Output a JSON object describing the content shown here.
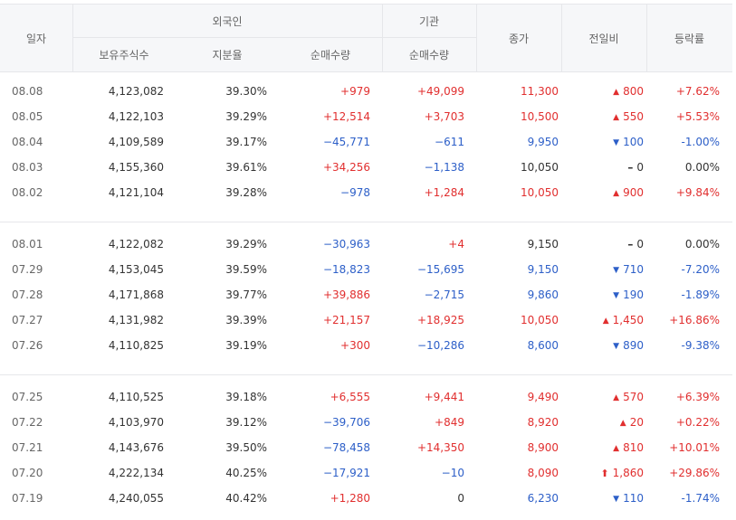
{
  "header": {
    "date": "일자",
    "foreign": "외국인",
    "institution": "기관",
    "holdings": "보유주식수",
    "ratio": "지분율",
    "foreign_net": "순매수량",
    "inst_net": "순매수량",
    "close": "종가",
    "change": "전일비",
    "rate": "등락률"
  },
  "colors": {
    "up": "#e12f2f",
    "down": "#2d5fc8"
  },
  "groups": [
    [
      {
        "date": "08.08",
        "hold": "4,123,082",
        "ratio": "39.30%",
        "fnet": "+979",
        "fnet_dir": "up",
        "inet": "+49,099",
        "inet_dir": "up",
        "close": "11,300",
        "close_dir": "up",
        "chg": "800",
        "chg_dir": "up",
        "chg_icon": "triangle-up-icon",
        "rate": "+7.62%",
        "rate_dir": "up"
      },
      {
        "date": "08.05",
        "hold": "4,122,103",
        "ratio": "39.29%",
        "fnet": "+12,514",
        "fnet_dir": "up",
        "inet": "+3,703",
        "inet_dir": "up",
        "close": "10,500",
        "close_dir": "up",
        "chg": "550",
        "chg_dir": "up",
        "chg_icon": "triangle-up-icon",
        "rate": "+5.53%",
        "rate_dir": "up"
      },
      {
        "date": "08.04",
        "hold": "4,109,589",
        "ratio": "39.17%",
        "fnet": "−45,771",
        "fnet_dir": "down",
        "inet": "−611",
        "inet_dir": "down",
        "close": "9,950",
        "close_dir": "down",
        "chg": "100",
        "chg_dir": "down",
        "chg_icon": "triangle-down-icon",
        "rate": "-1.00%",
        "rate_dir": "down"
      },
      {
        "date": "08.03",
        "hold": "4,155,360",
        "ratio": "39.61%",
        "fnet": "+34,256",
        "fnet_dir": "up",
        "inet": "−1,138",
        "inet_dir": "down",
        "close": "10,050",
        "close_dir": "flat",
        "chg": "0",
        "chg_dir": "flat",
        "chg_icon": "flat-dash-icon",
        "rate": "0.00%",
        "rate_dir": "flat"
      },
      {
        "date": "08.02",
        "hold": "4,121,104",
        "ratio": "39.28%",
        "fnet": "−978",
        "fnet_dir": "down",
        "inet": "+1,284",
        "inet_dir": "up",
        "close": "10,050",
        "close_dir": "up",
        "chg": "900",
        "chg_dir": "up",
        "chg_icon": "triangle-up-icon",
        "rate": "+9.84%",
        "rate_dir": "up"
      }
    ],
    [
      {
        "date": "08.01",
        "hold": "4,122,082",
        "ratio": "39.29%",
        "fnet": "−30,963",
        "fnet_dir": "down",
        "inet": "+4",
        "inet_dir": "up",
        "close": "9,150",
        "close_dir": "flat",
        "chg": "0",
        "chg_dir": "flat",
        "chg_icon": "flat-dash-icon",
        "rate": "0.00%",
        "rate_dir": "flat"
      },
      {
        "date": "07.29",
        "hold": "4,153,045",
        "ratio": "39.59%",
        "fnet": "−18,823",
        "fnet_dir": "down",
        "inet": "−15,695",
        "inet_dir": "down",
        "close": "9,150",
        "close_dir": "down",
        "chg": "710",
        "chg_dir": "down",
        "chg_icon": "triangle-down-icon",
        "rate": "-7.20%",
        "rate_dir": "down"
      },
      {
        "date": "07.28",
        "hold": "4,171,868",
        "ratio": "39.77%",
        "fnet": "+39,886",
        "fnet_dir": "up",
        "inet": "−2,715",
        "inet_dir": "down",
        "close": "9,860",
        "close_dir": "down",
        "chg": "190",
        "chg_dir": "down",
        "chg_icon": "triangle-down-icon",
        "rate": "-1.89%",
        "rate_dir": "down"
      },
      {
        "date": "07.27",
        "hold": "4,131,982",
        "ratio": "39.39%",
        "fnet": "+21,157",
        "fnet_dir": "up",
        "inet": "+18,925",
        "inet_dir": "up",
        "close": "10,050",
        "close_dir": "up",
        "chg": "1,450",
        "chg_dir": "up",
        "chg_icon": "triangle-up-icon",
        "rate": "+16.86%",
        "rate_dir": "up"
      },
      {
        "date": "07.26",
        "hold": "4,110,825",
        "ratio": "39.19%",
        "fnet": "+300",
        "fnet_dir": "up",
        "inet": "−10,286",
        "inet_dir": "down",
        "close": "8,600",
        "close_dir": "down",
        "chg": "890",
        "chg_dir": "down",
        "chg_icon": "triangle-down-icon",
        "rate": "-9.38%",
        "rate_dir": "down"
      }
    ],
    [
      {
        "date": "07.25",
        "hold": "4,110,525",
        "ratio": "39.18%",
        "fnet": "+6,555",
        "fnet_dir": "up",
        "inet": "+9,441",
        "inet_dir": "up",
        "close": "9,490",
        "close_dir": "up",
        "chg": "570",
        "chg_dir": "up",
        "chg_icon": "triangle-up-icon",
        "rate": "+6.39%",
        "rate_dir": "up"
      },
      {
        "date": "07.22",
        "hold": "4,103,970",
        "ratio": "39.12%",
        "fnet": "−39,706",
        "fnet_dir": "down",
        "inet": "+849",
        "inet_dir": "up",
        "close": "8,920",
        "close_dir": "up",
        "chg": "20",
        "chg_dir": "up",
        "chg_icon": "triangle-up-icon",
        "rate": "+0.22%",
        "rate_dir": "up"
      },
      {
        "date": "07.21",
        "hold": "4,143,676",
        "ratio": "39.50%",
        "fnet": "−78,458",
        "fnet_dir": "down",
        "inet": "+14,350",
        "inet_dir": "up",
        "close": "8,900",
        "close_dir": "up",
        "chg": "810",
        "chg_dir": "up",
        "chg_icon": "triangle-up-icon",
        "rate": "+10.01%",
        "rate_dir": "up"
      },
      {
        "date": "07.20",
        "hold": "4,222,134",
        "ratio": "40.25%",
        "fnet": "−17,921",
        "fnet_dir": "down",
        "inet": "−10",
        "inet_dir": "down",
        "close": "8,090",
        "close_dir": "up",
        "chg": "1,860",
        "chg_dir": "up",
        "chg_icon": "limit-up-arrow-icon",
        "rate": "+29.86%",
        "rate_dir": "up"
      },
      {
        "date": "07.19",
        "hold": "4,240,055",
        "ratio": "40.42%",
        "fnet": "+1,280",
        "fnet_dir": "up",
        "inet": "0",
        "inet_dir": "flat",
        "close": "6,230",
        "close_dir": "down",
        "chg": "110",
        "chg_dir": "down",
        "chg_icon": "triangle-down-icon",
        "rate": "-1.74%",
        "rate_dir": "down"
      }
    ]
  ]
}
